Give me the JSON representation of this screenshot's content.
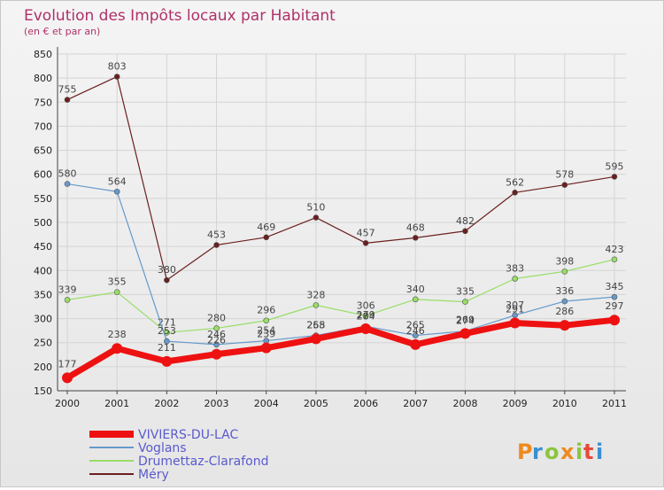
{
  "chart_data": {
    "type": "line",
    "title": "Evolution des Impôts locaux par Habitant",
    "subtitle": "(en € et par an)",
    "x": [
      "2000",
      "2001",
      "2002",
      "2003",
      "2004",
      "2005",
      "2006",
      "2007",
      "2008",
      "2009",
      "2010",
      "2011"
    ],
    "ylim": [
      150,
      850
    ],
    "yticks": [
      150,
      200,
      250,
      300,
      350,
      400,
      450,
      500,
      550,
      600,
      650,
      700,
      750,
      800,
      850
    ],
    "series": [
      {
        "name": "Méry",
        "color": "#6b1f1f",
        "width": 1.2,
        "values": [
          755,
          803,
          380,
          453,
          469,
          510,
          457,
          468,
          482,
          562,
          578,
          595
        ]
      },
      {
        "name": "Drumettaz-Clarafond",
        "color": "#99dd66",
        "width": 1.2,
        "values": [
          339,
          355,
          271,
          280,
          296,
          328,
          306,
          340,
          335,
          383,
          398,
          423
        ]
      },
      {
        "name": "Voglans",
        "color": "#6699cc",
        "width": 1.2,
        "values": [
          580,
          564,
          253,
          246,
          254,
          265,
          284,
          265,
          274,
          307,
          336,
          345
        ]
      },
      {
        "name": "VIVIERS-DU-LAC",
        "color": "#ee1111",
        "width": 7,
        "values": [
          177,
          238,
          211,
          226,
          239,
          258,
          279,
          246,
          269,
          291,
          286,
          297
        ]
      }
    ],
    "legend": [
      "VIVIERS-DU-LAC",
      "Voglans",
      "Drumettaz-Clarafond",
      "Méry"
    ],
    "legend_colors": [
      "#ee1111",
      "#6699cc",
      "#99dd66",
      "#6b1f1f"
    ]
  },
  "brand": {
    "text": "Prox",
    "dots": "i",
    "t": "t",
    "i2": "i",
    "x": "x"
  }
}
